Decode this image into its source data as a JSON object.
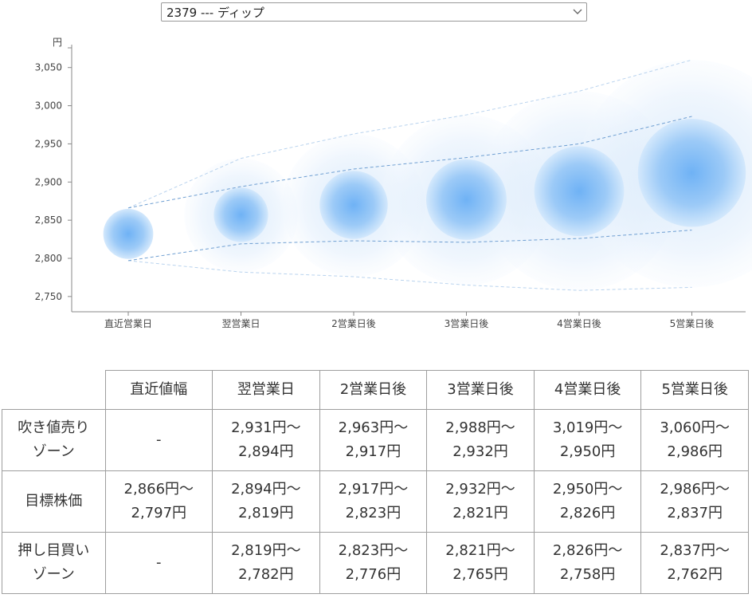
{
  "selector": {
    "selected_label": "2379 --- ディップ",
    "arrow_icon": "chevron-down-icon"
  },
  "chart_data": {
    "type": "scatter",
    "yunit": "円",
    "ylim": [
      2730,
      3080
    ],
    "yticks": [
      "3,050",
      "3,000",
      "2,950",
      "2,900",
      "2,850",
      "2,800",
      "2,750"
    ],
    "ytick_values": [
      3050,
      3000,
      2950,
      2900,
      2850,
      2800,
      2750
    ],
    "categories": [
      "直近営業日",
      "翌営業日",
      "2営業日後",
      "3営業日後",
      "4営業日後",
      "5営業日後"
    ],
    "target_center": [
      2832,
      2857,
      2870,
      2877,
      2888,
      2912
    ],
    "target_upper": [
      2866,
      2894,
      2917,
      2932,
      2950,
      2986
    ],
    "target_lower": [
      2797,
      2819,
      2823,
      2821,
      2826,
      2837
    ],
    "outer_upper": [
      2866,
      2931,
      2963,
      2988,
      3019,
      3060
    ],
    "outer_lower": [
      2797,
      2782,
      2776,
      2765,
      2758,
      2762
    ],
    "colors": {
      "bubble": "#3d8fe6",
      "line": "#7aa7d6"
    },
    "grid": false
  },
  "table": {
    "headers": [
      "",
      "直近値幅",
      "翌営業日",
      "2営業日後",
      "3営業日後",
      "4営業日後",
      "5営業日後"
    ],
    "rows": [
      {
        "label": [
          "吹き値売り",
          "ゾーン"
        ],
        "cells": [
          [
            "-"
          ],
          [
            "2,931円～",
            "2,894円"
          ],
          [
            "2,963円～",
            "2,917円"
          ],
          [
            "2,988円～",
            "2,932円"
          ],
          [
            "3,019円～",
            "2,950円"
          ],
          [
            "3,060円～",
            "2,986円"
          ]
        ]
      },
      {
        "label": [
          "目標株価"
        ],
        "cells": [
          [
            "2,866円～",
            "2,797円"
          ],
          [
            "2,894円～",
            "2,819円"
          ],
          [
            "2,917円～",
            "2,823円"
          ],
          [
            "2,932円～",
            "2,821円"
          ],
          [
            "2,950円～",
            "2,826円"
          ],
          [
            "2,986円～",
            "2,837円"
          ]
        ]
      },
      {
        "label": [
          "押し目買い",
          "ゾーン"
        ],
        "cells": [
          [
            "-"
          ],
          [
            "2,819円～",
            "2,782円"
          ],
          [
            "2,823円～",
            "2,776円"
          ],
          [
            "2,821円～",
            "2,765円"
          ],
          [
            "2,826円～",
            "2,758円"
          ],
          [
            "2,837円～",
            "2,762円"
          ]
        ]
      }
    ]
  }
}
